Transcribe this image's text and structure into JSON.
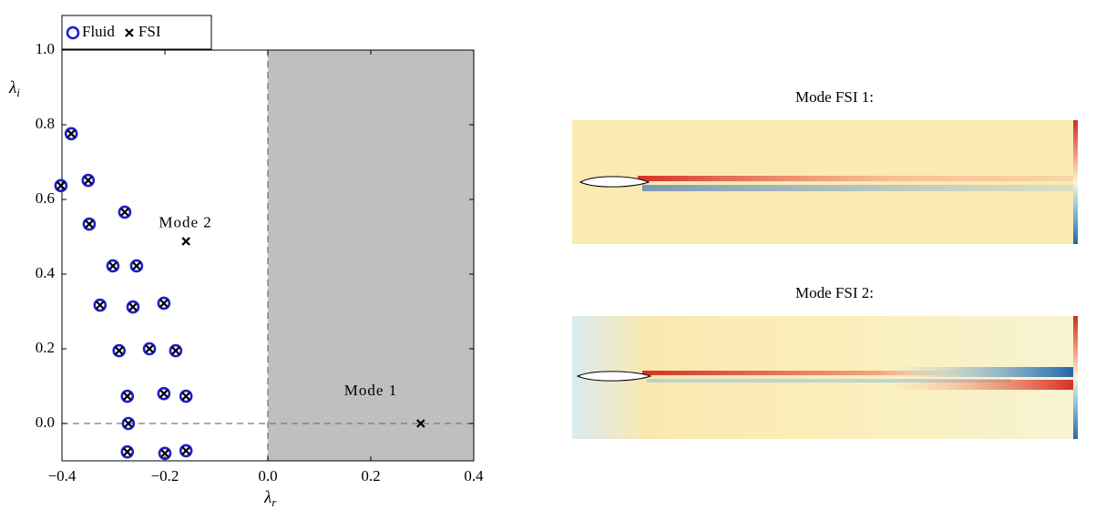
{
  "chart_data": {
    "type": "scatter",
    "xlabel": {
      "symbol": "λ",
      "subscript": "r"
    },
    "ylabel": {
      "symbol": "λ",
      "subscript": "i"
    },
    "xlim": [
      -0.4,
      0.4
    ],
    "ylim": [
      -0.1,
      1.0
    ],
    "xticks": [
      {
        "value": -0.4,
        "label": "−0.4"
      },
      {
        "value": -0.2,
        "label": "−0.2"
      },
      {
        "value": 0,
        "label": "0.0"
      },
      0.2,
      0.4
    ],
    "yticks": [
      {
        "value": 0,
        "label": "0.0"
      },
      0.2,
      0.4,
      0.6,
      0.8,
      {
        "value": 1,
        "label": "1.0"
      }
    ],
    "shaded_region": {
      "x": [
        0,
        0.4
      ],
      "color": "#bfbfbf"
    },
    "reference_lines": {
      "x": 0,
      "y": 0
    },
    "legend": "top-left",
    "series": [
      {
        "name": "Fluid",
        "marker": "circle",
        "color": "#1f1fc8",
        "x": [
          -0.382,
          -0.402,
          -0.349,
          -0.347,
          -0.278,
          -0.301,
          -0.255,
          -0.326,
          -0.262,
          -0.202,
          -0.289,
          -0.23,
          -0.179,
          -0.273,
          -0.202,
          -0.159,
          -0.271,
          -0.273,
          -0.2,
          -0.159
        ],
        "values": [
          0.776,
          0.637,
          0.651,
          0.534,
          0.566,
          0.422,
          0.422,
          0.317,
          0.312,
          0.322,
          0.195,
          0.2,
          0.195,
          0.073,
          0.08,
          0.073,
          0,
          -0.076,
          -0.08,
          -0.073
        ]
      },
      {
        "name": "FSI",
        "marker": "cross",
        "color": "#000000",
        "x": [
          -0.382,
          -0.402,
          -0.349,
          -0.347,
          -0.278,
          -0.301,
          -0.255,
          -0.326,
          -0.262,
          -0.202,
          -0.289,
          -0.23,
          -0.179,
          -0.273,
          -0.202,
          -0.159,
          -0.271,
          -0.273,
          -0.2,
          -0.159,
          -0.159,
          0.297
        ],
        "values": [
          0.776,
          0.637,
          0.651,
          0.534,
          0.566,
          0.422,
          0.422,
          0.317,
          0.312,
          0.322,
          0.195,
          0.2,
          0.195,
          0.073,
          0.08,
          0.073,
          0,
          -0.076,
          -0.08,
          -0.073,
          0.488,
          0
        ]
      }
    ],
    "annotations": [
      {
        "text": "Mode 2",
        "x": -0.16,
        "y": 0.535
      },
      {
        "text": "Mode 1",
        "x": 0.2,
        "y": 0.085
      }
    ]
  },
  "panels": [
    {
      "title": "Mode FSI 1:"
    },
    {
      "title": "Mode FSI 2:"
    }
  ]
}
